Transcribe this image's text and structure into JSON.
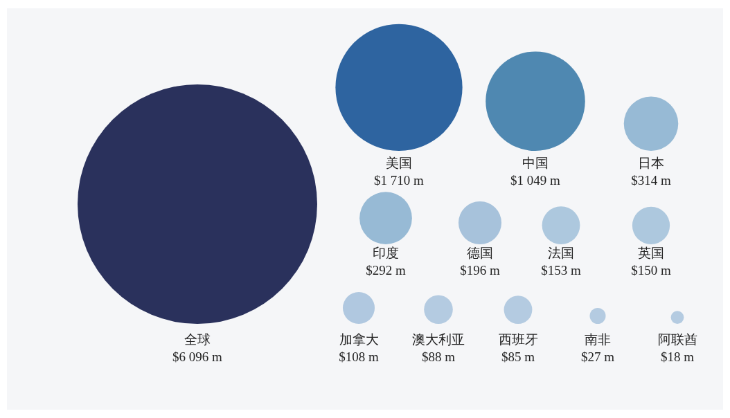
{
  "chart_data": {
    "type": "other",
    "categories": [
      "全球",
      "美国",
      "中国",
      "日本",
      "印度",
      "德国",
      "法国",
      "英国",
      "加拿大",
      "澳大利亚",
      "西班牙",
      "南非",
      "阿联酋"
    ],
    "values": [
      6096,
      1710,
      1049,
      314,
      292,
      196,
      153,
      150,
      108,
      88,
      85,
      27,
      18
    ],
    "value_labels": [
      "$6 096 m",
      "$1 710 m",
      "$1 049 m",
      "$314 m",
      "$292 m",
      "$196 m",
      "$153 m",
      "$150 m",
      "$108 m",
      "$88 m",
      "$85 m",
      "$27 m",
      "$18 m"
    ],
    "colors": [
      "#2a315c",
      "#2e64a0",
      "#4f88b1",
      "#97bad5",
      "#97bad5",
      "#a7c2db",
      "#adc8de",
      "#adc8de",
      "#b0c8e0",
      "#b4cbe1",
      "#b4cbe1",
      "#b4cbe1",
      "#b4cbe1"
    ]
  }
}
